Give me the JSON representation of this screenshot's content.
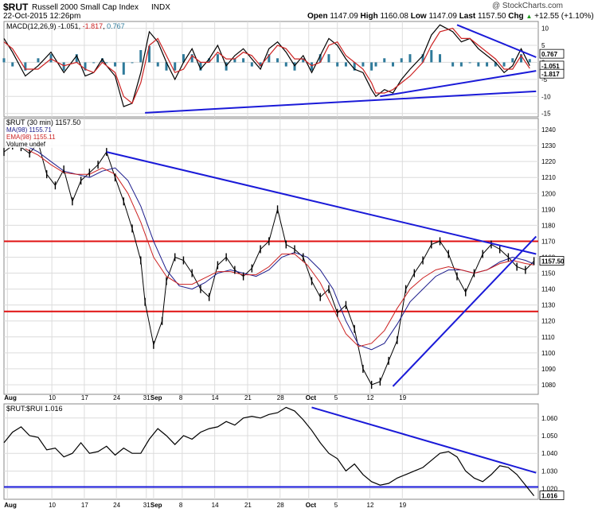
{
  "header": {
    "symbol": "$RUT",
    "name": "Russell 2000 Small Cap Index",
    "exchange": "INDX",
    "date": "22-Oct-2015 12:26pm",
    "watermark": "@ StockCharts.com",
    "quote": {
      "open_label": "Open",
      "open": "1147.09",
      "high_label": "High",
      "high": "1160.08",
      "low_label": "Low",
      "low": "1147.09",
      "last_label": "Last",
      "last": "1157.50",
      "chg_label": "Chg",
      "chg": "+12.55 (+1.10%)",
      "chg_arrow": "▲"
    }
  },
  "colors": {
    "price": "#000000",
    "ma": "#1c1c8c",
    "ema": "#cc2222",
    "trendline": "#1a1ad8",
    "support": "#e01010",
    "macd_hist": "#2f7a9a",
    "grid": "#dcdcdc"
  },
  "chart_data": [
    {
      "type": "line",
      "panel": "macd",
      "legend": [
        {
          "text": "MACD(12,26,9)",
          "color": "#000000"
        },
        {
          "text": "-1.051",
          "color": "#000000"
        },
        {
          "text": "-1.817",
          "color": "#cc2222"
        },
        {
          "text": "0.767",
          "color": "#2f7a9a"
        }
      ],
      "ylim": [
        -16,
        12
      ],
      "yticks": [
        10,
        5,
        0,
        -5,
        -10,
        -15
      ],
      "ytick_labels": [
        "10",
        "5",
        "0",
        "-5",
        "-10",
        "-15"
      ],
      "value_labels": [
        "0.767",
        "-1.051",
        "-1.817"
      ],
      "series": [
        {
          "name": "MACD",
          "x": [
            0,
            2,
            5,
            8,
            11,
            14,
            17,
            19,
            21,
            23,
            24,
            26,
            28,
            30,
            32,
            34,
            36,
            38,
            40,
            42,
            44,
            46,
            48,
            50,
            52,
            54,
            56,
            58,
            60,
            62,
            64,
            66,
            68,
            70,
            72,
            74,
            76,
            78,
            80,
            82,
            84,
            86,
            87,
            89,
            91,
            93,
            95,
            98,
            100,
            102,
            105,
            107,
            109,
            111,
            113,
            115,
            117,
            119,
            121,
            123
          ],
          "y": [
            7,
            3,
            -4,
            -1,
            3,
            -3,
            2,
            -4,
            -3,
            1,
            -1,
            -4,
            -13,
            -12,
            -3,
            9,
            6,
            0,
            -5,
            0,
            4,
            -2,
            1,
            5,
            -1,
            2,
            4,
            1,
            -2,
            4,
            6,
            3,
            -1,
            2,
            -3,
            2,
            7,
            5,
            1,
            -2,
            -3,
            -8,
            -10,
            -8,
            -9,
            -5,
            -2,
            2,
            8,
            11,
            9,
            6,
            7,
            4,
            2,
            0,
            -3,
            -1,
            4,
            -1
          ]
        },
        {
          "name": "Signal",
          "x": [
            0,
            2,
            5,
            8,
            11,
            14,
            17,
            19,
            21,
            23,
            24,
            26,
            28,
            30,
            32,
            34,
            36,
            38,
            40,
            42,
            44,
            46,
            48,
            50,
            52,
            54,
            56,
            58,
            60,
            62,
            64,
            66,
            68,
            70,
            72,
            74,
            76,
            78,
            80,
            82,
            84,
            86,
            87,
            89,
            91,
            93,
            95,
            98,
            100,
            102,
            105,
            107,
            109,
            111,
            113,
            115,
            117,
            119,
            121,
            123
          ],
          "y": [
            6,
            4,
            -2,
            -2,
            1,
            -1,
            0,
            -2,
            -3,
            0,
            -1,
            -3,
            -10,
            -12,
            -6,
            5,
            7,
            2,
            -3,
            -2,
            2,
            0,
            0,
            3,
            1,
            1,
            3,
            2,
            -1,
            2,
            5,
            4,
            1,
            1,
            -1,
            0,
            5,
            6,
            2,
            0,
            -2,
            -6,
            -9,
            -9,
            -8,
            -6,
            -4,
            0,
            5,
            9,
            10,
            7,
            7,
            5,
            3,
            1,
            -2,
            -2,
            2,
            -1.8
          ]
        }
      ],
      "trendlines": [
        {
          "x": [
            106,
            124.5
          ],
          "y": [
            11,
            1.5
          ]
        },
        {
          "x": [
            88,
            124.5
          ],
          "y": [
            -10,
            -2.5
          ]
        },
        {
          "x": [
            33,
            124.5
          ],
          "y": [
            -14.8,
            -8.5
          ]
        }
      ]
    },
    {
      "type": "line",
      "panel": "price",
      "legend": [
        {
          "text": "$RUT (30 min) 1157.50",
          "color": "#000000"
        },
        {
          "text": "MA(98) 1155.71",
          "color": "#1c1c8c"
        },
        {
          "text": "EMA(98) 1155.11",
          "color": "#cc2222"
        },
        {
          "text": "Volume undef",
          "color": "#000000"
        }
      ],
      "ylim": [
        1074,
        1247
      ],
      "yticks": [
        1080,
        1090,
        1100,
        1110,
        1120,
        1130,
        1140,
        1150,
        1160,
        1170,
        1180,
        1190,
        1200,
        1210,
        1220,
        1230,
        1240
      ],
      "ytick_labels": [
        "1080",
        "1090",
        "1100",
        "1110",
        "1120",
        "1130",
        "1140",
        "1150",
        "1160",
        "1170",
        "1180",
        "1190",
        "1200",
        "1210",
        "1220",
        "1230",
        "1240"
      ],
      "last_value_label": "1157.50",
      "series": [
        {
          "name": "$RUT",
          "x": [
            0,
            2,
            4,
            6,
            8,
            10,
            12,
            14,
            16,
            18,
            20,
            22,
            24,
            26,
            28,
            30,
            32,
            33,
            35,
            37,
            38,
            40,
            42,
            44,
            46,
            48,
            50,
            52,
            54,
            56,
            58,
            60,
            62,
            64,
            66,
            68,
            70,
            72,
            74,
            76,
            78,
            80,
            82,
            84,
            86,
            88,
            90,
            92,
            94,
            96,
            98,
            100,
            102,
            104,
            106,
            108,
            110,
            112,
            114,
            116,
            118,
            120,
            122,
            124
          ],
          "y": [
            1226,
            1230,
            1229,
            1225,
            1232,
            1212,
            1205,
            1215,
            1195,
            1208,
            1213,
            1218,
            1226,
            1210,
            1195,
            1178,
            1158,
            1132,
            1105,
            1120,
            1145,
            1160,
            1158,
            1150,
            1140,
            1135,
            1155,
            1160,
            1152,
            1148,
            1153,
            1165,
            1170,
            1190,
            1168,
            1165,
            1160,
            1145,
            1135,
            1140,
            1125,
            1130,
            1115,
            1090,
            1080,
            1082,
            1095,
            1108,
            1140,
            1150,
            1158,
            1168,
            1170,
            1162,
            1148,
            1138,
            1150,
            1162,
            1168,
            1165,
            1160,
            1154,
            1152,
            1157.5
          ]
        },
        {
          "name": "MA(98)",
          "x": [
            5,
            8,
            11,
            14,
            17,
            20,
            23,
            26,
            29,
            32,
            35,
            38,
            41,
            44,
            47,
            50,
            53,
            56,
            59,
            62,
            65,
            68,
            71,
            74,
            77,
            80,
            83,
            86,
            89,
            92,
            95,
            98,
            101,
            104,
            107,
            110,
            113,
            116,
            119,
            122,
            124
          ],
          "y": [
            1230,
            1226,
            1220,
            1214,
            1212,
            1210,
            1214,
            1216,
            1208,
            1192,
            1170,
            1152,
            1142,
            1140,
            1144,
            1150,
            1152,
            1150,
            1148,
            1152,
            1160,
            1163,
            1160,
            1152,
            1140,
            1120,
            1105,
            1102,
            1106,
            1118,
            1132,
            1140,
            1148,
            1152,
            1152,
            1150,
            1152,
            1157,
            1160,
            1158,
            1155.71
          ]
        },
        {
          "name": "EMA(98)",
          "x": [
            5,
            8,
            11,
            14,
            17,
            20,
            23,
            26,
            29,
            32,
            35,
            38,
            41,
            44,
            47,
            50,
            53,
            56,
            59,
            62,
            65,
            68,
            71,
            74,
            77,
            80,
            83,
            86,
            89,
            92,
            95,
            98,
            101,
            104,
            107,
            110,
            113,
            116,
            119,
            122,
            124
          ],
          "y": [
            1228,
            1224,
            1218,
            1213,
            1212,
            1212,
            1216,
            1212,
            1200,
            1182,
            1160,
            1148,
            1143,
            1143,
            1147,
            1151,
            1151,
            1149,
            1149,
            1154,
            1162,
            1162,
            1155,
            1144,
            1128,
            1112,
            1104,
            1106,
            1114,
            1128,
            1140,
            1147,
            1152,
            1154,
            1152,
            1150,
            1152,
            1156,
            1158,
            1156,
            1155.11
          ]
        }
      ],
      "trendlines": [
        {
          "x": [
            24,
            124.5
          ],
          "y": [
            1226,
            1162
          ]
        },
        {
          "x": [
            91,
            124.5
          ],
          "y": [
            1079,
            1173
          ]
        }
      ],
      "support_lines": [
        1170,
        1126
      ]
    },
    {
      "type": "line",
      "panel": "ratio",
      "legend": [
        {
          "text": "$RUT:$RUI 1.016",
          "color": "#000000"
        }
      ],
      "ylim": [
        1.014,
        1.068
      ],
      "yticks": [
        1.02,
        1.03,
        1.04,
        1.05,
        1.06
      ],
      "ytick_labels": [
        "1.020",
        "1.030",
        "1.040",
        "1.050",
        "1.060"
      ],
      "last_value_label": "1.016",
      "series": [
        {
          "name": "$RUT:$RUI",
          "x": [
            0,
            2,
            4,
            6,
            8,
            10,
            12,
            14,
            16,
            18,
            20,
            22,
            24,
            26,
            28,
            30,
            32,
            34,
            36,
            38,
            40,
            42,
            44,
            46,
            48,
            50,
            52,
            54,
            56,
            58,
            60,
            62,
            64,
            66,
            68,
            70,
            72,
            74,
            76,
            78,
            80,
            82,
            84,
            86,
            88,
            90,
            92,
            94,
            96,
            98,
            100,
            102,
            104,
            106,
            108,
            110,
            112,
            114,
            116,
            118,
            120,
            122,
            124
          ],
          "y": [
            1.046,
            1.052,
            1.055,
            1.05,
            1.049,
            1.042,
            1.043,
            1.038,
            1.04,
            1.046,
            1.04,
            1.041,
            1.044,
            1.039,
            1.043,
            1.04,
            1.04,
            1.048,
            1.054,
            1.05,
            1.045,
            1.05,
            1.048,
            1.052,
            1.054,
            1.055,
            1.058,
            1.056,
            1.06,
            1.061,
            1.06,
            1.062,
            1.063,
            1.066,
            1.064,
            1.059,
            1.053,
            1.046,
            1.04,
            1.037,
            1.03,
            1.034,
            1.028,
            1.024,
            1.022,
            1.023,
            1.026,
            1.028,
            1.03,
            1.032,
            1.036,
            1.04,
            1.041,
            1.038,
            1.03,
            1.026,
            1.024,
            1.028,
            1.033,
            1.032,
            1.028,
            1.022,
            1.016
          ]
        }
      ],
      "trendlines": [
        {
          "x": [
            72,
            124.5
          ],
          "y": [
            1.066,
            1.029
          ]
        }
      ],
      "support_lines": [
        1.021
      ]
    }
  ],
  "x_axis": {
    "labels": [
      {
        "label": "Aug",
        "x": 0.8
      },
      {
        "label": "10",
        "x": 11.2
      },
      {
        "label": "17",
        "x": 18.8
      },
      {
        "label": "24",
        "x": 26.3
      },
      {
        "label": "31",
        "x": 33.3
      },
      {
        "label": "Sep",
        "x": 35
      },
      {
        "label": "8",
        "x": 41.7
      },
      {
        "label": "14",
        "x": 49.3
      },
      {
        "label": "21",
        "x": 57
      },
      {
        "label": "28",
        "x": 64.6
      },
      {
        "label": "Oct",
        "x": 71.3
      },
      {
        "label": "5",
        "x": 78
      },
      {
        "label": "12",
        "x": 85.6
      },
      {
        "label": "19",
        "x": 93.2
      }
    ],
    "note": ""
  }
}
